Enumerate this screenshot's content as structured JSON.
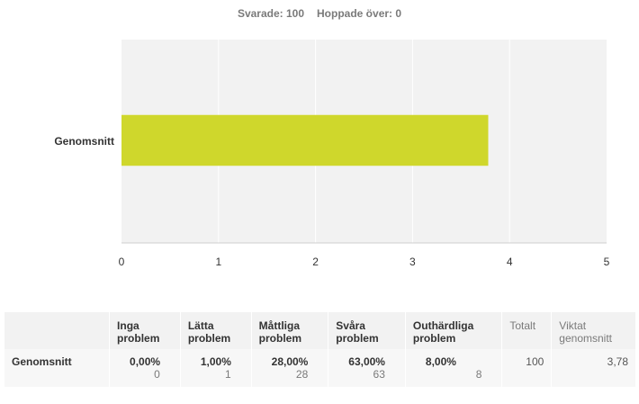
{
  "summary": {
    "answered": "Svarade: 100",
    "skipped": "Hoppade över: 0"
  },
  "chart_data": {
    "type": "bar",
    "orientation": "horizontal",
    "categories": [
      "Genomsnitt"
    ],
    "values": [
      3.78
    ],
    "xlim": [
      0,
      5
    ],
    "xticks": [
      "0",
      "1",
      "2",
      "3",
      "4",
      "5"
    ],
    "grid": true,
    "bar_color": "#cfd72c",
    "plot_background": "#f2f2f2"
  },
  "table": {
    "headers": [
      [
        "Inga",
        "problem"
      ],
      [
        "Lätta",
        "problem"
      ],
      [
        "Måttliga",
        "problem"
      ],
      [
        "Svåra",
        "problem"
      ],
      [
        "Outhärdliga",
        "problem"
      ],
      [
        "Totalt"
      ],
      [
        "Viktat",
        "genomsnitt"
      ]
    ],
    "row": {
      "label": "Genomsnitt",
      "cells": [
        {
          "pct": "0,00%",
          "count": "0"
        },
        {
          "pct": "1,00%",
          "count": "1"
        },
        {
          "pct": "28,00%",
          "count": "28"
        },
        {
          "pct": "63,00%",
          "count": "63"
        },
        {
          "pct": "8,00%",
          "count": "8"
        }
      ],
      "total": "100",
      "weighted": "3,78"
    }
  }
}
